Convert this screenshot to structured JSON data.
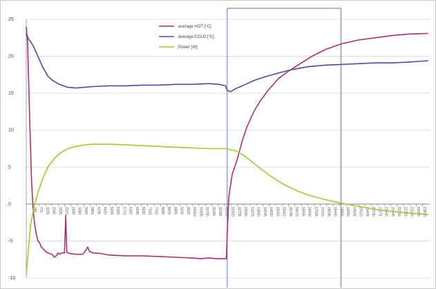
{
  "chart_data": {
    "type": "line",
    "ylim": [
      -10,
      25
    ],
    "y_ticks": [
      "25",
      "20",
      "15",
      "10",
      "5",
      "0",
      "-5",
      "-10"
    ],
    "grid": "horizontal",
    "legend_position": "top-center",
    "x_tick_labels": [
      "385",
      "770",
      "1155",
      "1540",
      "1925",
      "2310",
      "2695",
      "3080",
      "3465",
      "3850",
      "4235",
      "4620",
      "5005",
      "5390",
      "5775",
      "6160",
      "6545",
      "6930",
      "7315",
      "7700",
      "8085",
      "8470",
      "8855",
      "9240",
      "9625",
      "10010",
      "10395",
      "10780",
      "11165",
      "11550",
      "11935",
      "12320",
      "12705",
      "13090",
      "13475",
      "13860",
      "14245",
      "14630",
      "15015",
      "15400",
      "15785",
      "16170",
      "16555",
      "16940",
      "17325",
      "17710",
      "18095",
      "18480",
      "18865",
      "19250",
      "19635",
      "20020",
      "20405",
      "20790",
      "21175",
      "21560",
      "21945",
      "22330",
      "22715",
      "23100",
      "23485",
      "23870"
    ],
    "x_range": [
      0,
      24300
    ],
    "vertical_markers": [
      12100,
      18950
    ],
    "series": [
      {
        "name": "average HOT  [°C]",
        "color": "#a8306e",
        "points": [
          [
            0,
            24
          ],
          [
            80,
            22
          ],
          [
            200,
            12
          ],
          [
            320,
            3
          ],
          [
            420,
            -1
          ],
          [
            520,
            -3
          ],
          [
            600,
            -4
          ],
          [
            700,
            -5
          ],
          [
            800,
            -5.2
          ],
          [
            900,
            -5.8
          ],
          [
            1000,
            -6
          ],
          [
            1200,
            -6.5
          ],
          [
            1400,
            -6.7
          ],
          [
            1550,
            -6.8
          ],
          [
            1700,
            -7.2
          ],
          [
            1850,
            -6.9
          ],
          [
            1900,
            -6.6
          ],
          [
            2000,
            -6.8
          ],
          [
            2150,
            -6.6
          ],
          [
            2300,
            -6.6
          ],
          [
            2380,
            -1.5
          ],
          [
            2440,
            -6.5
          ],
          [
            2600,
            -6.7
          ],
          [
            3000,
            -6.8
          ],
          [
            3400,
            -6.8
          ],
          [
            3600,
            -6.2
          ],
          [
            3700,
            -5.8
          ],
          [
            3800,
            -6.4
          ],
          [
            4000,
            -6.6
          ],
          [
            4500,
            -6.7
          ],
          [
            5000,
            -6.9
          ],
          [
            6000,
            -7.0
          ],
          [
            7000,
            -7.0
          ],
          [
            8000,
            -7.1
          ],
          [
            9000,
            -7.2
          ],
          [
            10000,
            -7.3
          ],
          [
            10500,
            -7.4
          ],
          [
            11000,
            -7.3
          ],
          [
            11500,
            -7.4
          ],
          [
            12050,
            -7.4
          ],
          [
            12100,
            -4
          ],
          [
            12200,
            1
          ],
          [
            12400,
            4
          ],
          [
            12700,
            6
          ],
          [
            13000,
            8.5
          ],
          [
            13300,
            10.5
          ],
          [
            13700,
            12.5
          ],
          [
            14100,
            14
          ],
          [
            14600,
            15.5
          ],
          [
            15200,
            17
          ],
          [
            15800,
            18
          ],
          [
            16500,
            19
          ],
          [
            17200,
            20
          ],
          [
            18000,
            20.9
          ],
          [
            19000,
            21.7
          ],
          [
            20000,
            22.2
          ],
          [
            21000,
            22.5
          ],
          [
            22000,
            22.8
          ],
          [
            23000,
            23
          ],
          [
            24200,
            23.1
          ]
        ]
      },
      {
        "name": "average COLD  [°C]",
        "color": "#4a4aa0",
        "points": [
          [
            0,
            23
          ],
          [
            150,
            22.3
          ],
          [
            400,
            21.5
          ],
          [
            700,
            20
          ],
          [
            1000,
            18.5
          ],
          [
            1300,
            17.3
          ],
          [
            1600,
            16.7
          ],
          [
            2000,
            16.2
          ],
          [
            2500,
            15.8
          ],
          [
            3000,
            15.7
          ],
          [
            3500,
            15.8
          ],
          [
            4000,
            15.9
          ],
          [
            5000,
            16
          ],
          [
            6000,
            16
          ],
          [
            7000,
            16.1
          ],
          [
            8000,
            16.1
          ],
          [
            9000,
            16.2
          ],
          [
            10000,
            16.2
          ],
          [
            11000,
            16.3
          ],
          [
            11600,
            16.2
          ],
          [
            12000,
            16
          ],
          [
            12100,
            15.4
          ],
          [
            12300,
            15.2
          ],
          [
            12600,
            15.6
          ],
          [
            13200,
            16.2
          ],
          [
            13800,
            16.8
          ],
          [
            14500,
            17.3
          ],
          [
            15300,
            17.8
          ],
          [
            16000,
            18.2
          ],
          [
            17000,
            18.6
          ],
          [
            18000,
            18.8
          ],
          [
            19000,
            18.9
          ],
          [
            20000,
            19
          ],
          [
            21000,
            19.1
          ],
          [
            22000,
            19.1
          ],
          [
            23000,
            19.2
          ],
          [
            24200,
            19.4
          ]
        ]
      },
      {
        "name": "Power  [W]",
        "color": "#9acd32",
        "points": [
          [
            0,
            -9.5
          ],
          [
            100,
            -7
          ],
          [
            250,
            -3
          ],
          [
            450,
            -0.5
          ],
          [
            700,
            1.5
          ],
          [
            1000,
            3.5
          ],
          [
            1300,
            5
          ],
          [
            1700,
            6.2
          ],
          [
            2100,
            7.0
          ],
          [
            2500,
            7.5
          ],
          [
            3000,
            7.8
          ],
          [
            3500,
            8.0
          ],
          [
            4000,
            8.1
          ],
          [
            5000,
            8.1
          ],
          [
            6000,
            8.0
          ],
          [
            7000,
            7.9
          ],
          [
            8000,
            7.8
          ],
          [
            9000,
            7.7
          ],
          [
            10000,
            7.6
          ],
          [
            11000,
            7.5
          ],
          [
            12000,
            7.5
          ],
          [
            12600,
            7.2
          ],
          [
            13100,
            6.6
          ],
          [
            13600,
            5.7
          ],
          [
            14100,
            4.8
          ],
          [
            14700,
            3.8
          ],
          [
            15400,
            2.8
          ],
          [
            16200,
            1.9
          ],
          [
            17000,
            1.2
          ],
          [
            18000,
            0.6
          ],
          [
            19000,
            0.1
          ],
          [
            20000,
            -0.3
          ],
          [
            21000,
            -0.7
          ],
          [
            22000,
            -1
          ],
          [
            23000,
            -1.2
          ],
          [
            24200,
            -1.4
          ]
        ]
      }
    ]
  }
}
